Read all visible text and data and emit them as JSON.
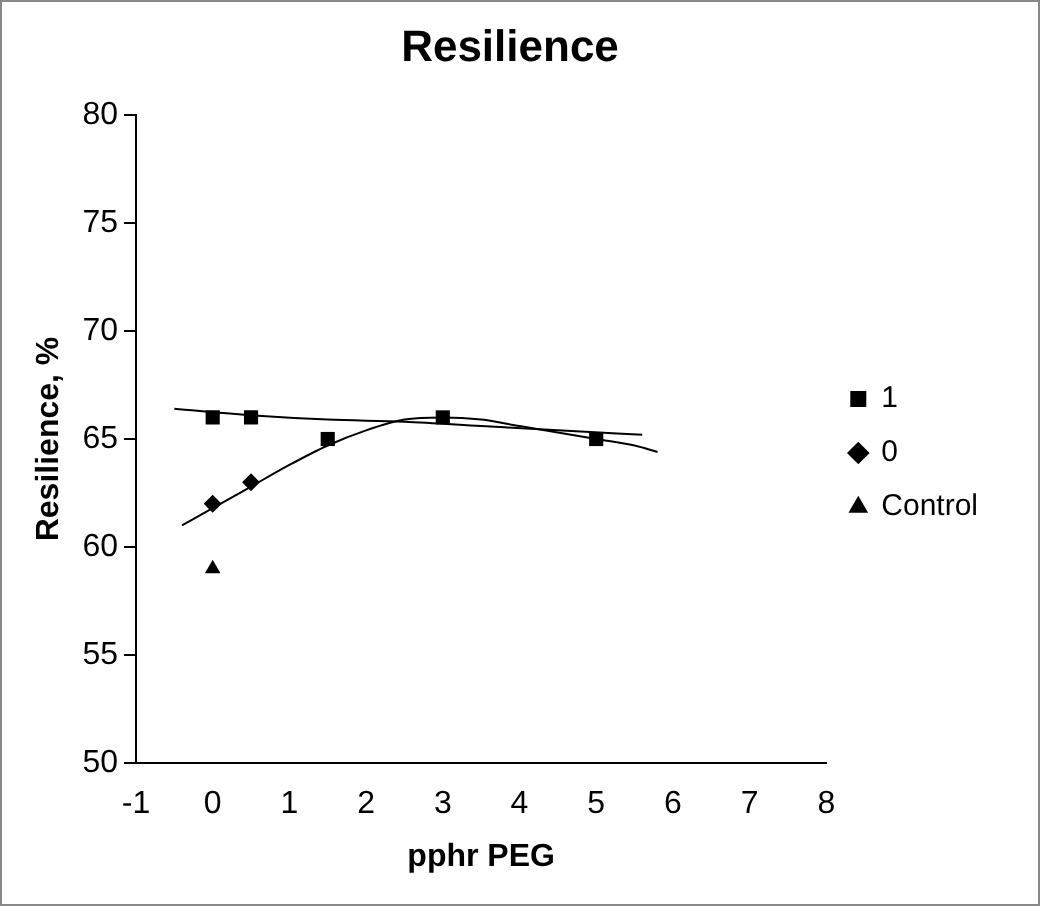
{
  "chart_data": {
    "type": "scatter",
    "title": "Resilience",
    "xlabel": "pphr PEG",
    "ylabel": "Resilience, %",
    "xlim": [
      -1,
      8
    ],
    "xticks": [
      -1,
      0,
      1,
      2,
      3,
      4,
      5,
      6,
      7,
      8
    ],
    "ylim": [
      50,
      80
    ],
    "yticks": [
      50,
      55,
      60,
      65,
      70,
      75,
      80
    ],
    "grid": false,
    "legend": "right",
    "series": [
      {
        "name": "1",
        "color": "#000000",
        "marker": "square",
        "x": [
          0,
          0.5,
          1.5,
          3,
          5
        ],
        "values": [
          66,
          66,
          65,
          66,
          65
        ]
      },
      {
        "name": "0",
        "color": "#000000",
        "marker": "diamond",
        "x": [
          0,
          0.5
        ],
        "values": [
          62,
          63
        ]
      },
      {
        "name": "Control",
        "color": "#000000",
        "marker": "triangle",
        "x": [
          0
        ],
        "values": [
          59
        ]
      },
      {
        "type": "line",
        "color": "#000000",
        "marker": "none",
        "x": [
          -0.5,
          0.5,
          1.5,
          2.5,
          3.5,
          4.5,
          5.6
        ],
        "values": [
          66.4,
          66.1,
          65.9,
          65.8,
          65.6,
          65.4,
          65.2
        ]
      },
      {
        "type": "line",
        "color": "#000000",
        "marker": "none",
        "x": [
          -0.4,
          0,
          0.5,
          1,
          1.5,
          2,
          2.5,
          3,
          3.5,
          4,
          4.5,
          5,
          5.5,
          5.8
        ],
        "values": [
          61,
          61.8,
          62.8,
          63.8,
          64.7,
          65.4,
          65.9,
          66,
          65.9,
          65.6,
          65.3,
          65,
          64.7,
          64.4
        ]
      }
    ]
  }
}
